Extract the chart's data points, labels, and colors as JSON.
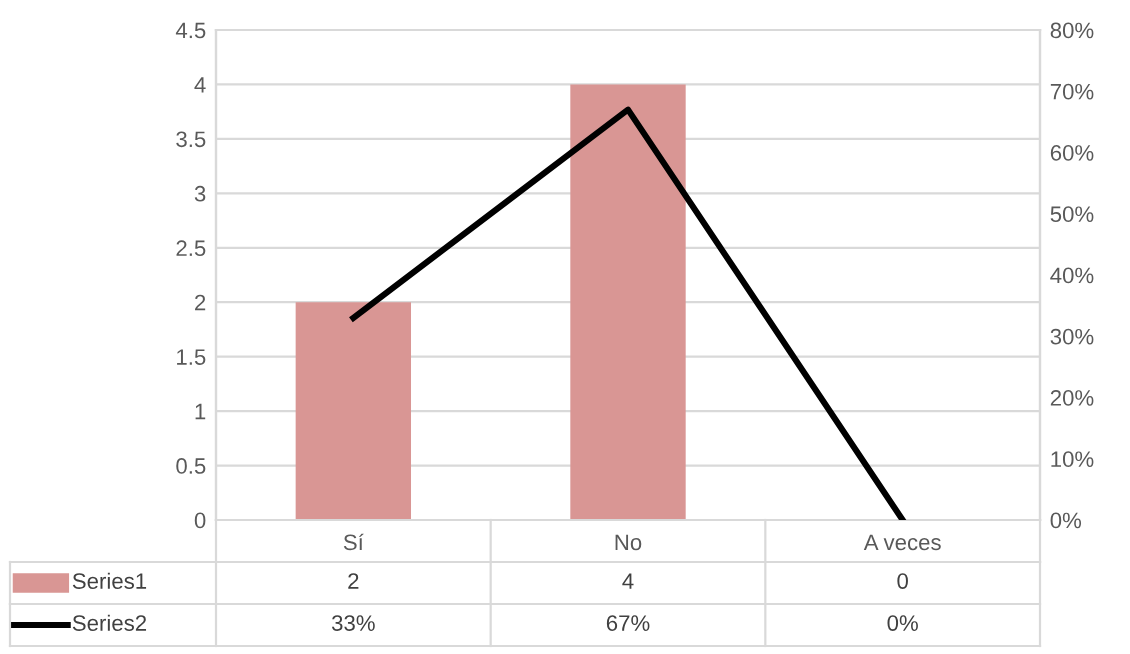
{
  "chart_data": {
    "type": "bar",
    "categories": [
      "Sí",
      "No",
      "A veces"
    ],
    "series": [
      {
        "name": "Series1",
        "color": "#d99694",
        "values": [
          2,
          4,
          0
        ],
        "value_labels": [
          "2",
          "4",
          "0"
        ]
      },
      {
        "name": "Series2",
        "type": "line",
        "axis": "y2",
        "color": "#000000",
        "values": [
          33,
          67,
          0
        ],
        "value_labels": [
          "33%",
          "67%",
          "0%"
        ],
        "marker": "none",
        "line_style": "solid"
      }
    ],
    "ylim": [
      0,
      4.5
    ],
    "yticks": [
      0,
      0.5,
      1,
      1.5,
      2,
      2.5,
      3,
      3.5,
      4,
      4.5
    ],
    "y2lim": [
      0,
      80
    ],
    "y2ticks": [
      {
        "value": 0,
        "label": "0%"
      },
      {
        "value": 10,
        "label": "10%"
      },
      {
        "value": 20,
        "label": "20%"
      },
      {
        "value": 30,
        "label": "30%"
      },
      {
        "value": 40,
        "label": "40%"
      },
      {
        "value": 50,
        "label": "50%"
      },
      {
        "value": 60,
        "label": "60%"
      },
      {
        "value": 70,
        "label": "70%"
      },
      {
        "value": 80,
        "label": "80%"
      }
    ],
    "grid": "y",
    "legend": "bottom left"
  }
}
